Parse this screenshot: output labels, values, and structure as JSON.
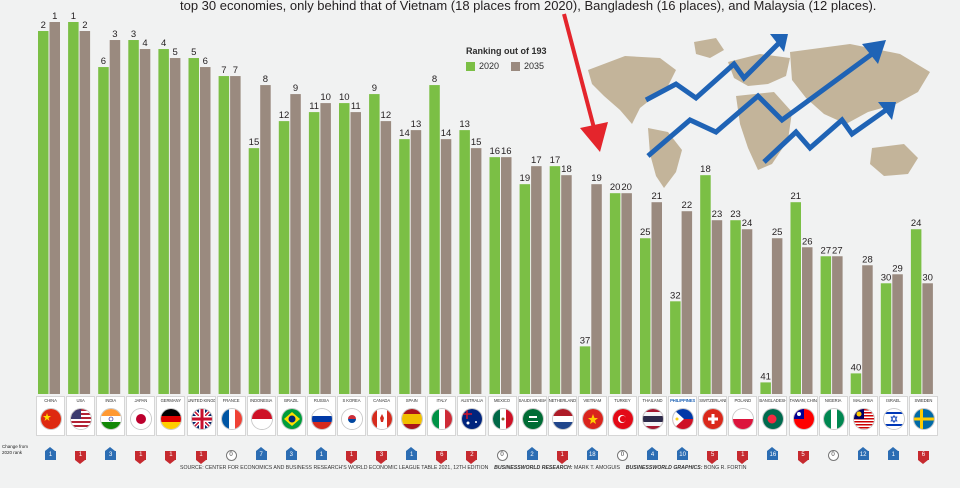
{
  "lead_text": "top 30 economies, only behind that of Vietnam (18 places from 2020), Bangladesh (16 places), and Malaysia (12 places).",
  "legend": {
    "title": "Ranking out of 193",
    "label_2020": "2020",
    "label_2035": "2035"
  },
  "change_label": "Change from 2020 rank",
  "footer": {
    "source": "SOURCE: CENTER FOR ECONOMICS AND BUSINESS RESEARCH'S WORLD ECONOMIC LEAGUE TABLE 2021, 12TH EDITION",
    "research_label": "BUSINESSWORLD RESEARCH:",
    "research_name": "MARK T. AMOGUIS",
    "graphics_label": "BUSINESSWORLD GRAPHICS:",
    "graphics_name": "BONG R. FORTIN"
  },
  "colors": {
    "bar_2020": "#7bbf45",
    "bar_2035": "#9a8a7f",
    "arrow_red": "#e4252c",
    "trend_blue": "#1f63b5",
    "map_tan": "#c3b49a"
  },
  "chart_data": {
    "type": "bar",
    "categories": [
      "CHINA",
      "USA",
      "INDIA",
      "JAPAN",
      "GERMANY",
      "UNITED KINGDOM",
      "FRANCE",
      "INDONESIA",
      "BRAZIL",
      "RUSSIA",
      "S KOREA",
      "CANADA",
      "SPAIN",
      "ITALY",
      "AUSTRALIA",
      "MEXICO",
      "SAUDI ARABIA",
      "NETHERLANDS",
      "VIETNAM",
      "TURKEY",
      "THAILAND",
      "PHILIPPINES",
      "SWITZERLAND",
      "POLAND",
      "BANGLADESH",
      "TAIWAN, CHINA",
      "NIGERIA",
      "MALAYSIA",
      "ISRAEL",
      "SWEDEN"
    ],
    "series": [
      {
        "name": "2020",
        "values": [
          2,
          1,
          6,
          3,
          4,
          5,
          7,
          15,
          12,
          11,
          10,
          9,
          14,
          8,
          13,
          16,
          19,
          17,
          37,
          20,
          25,
          32,
          18,
          23,
          41,
          21,
          27,
          40,
          30,
          24
        ]
      },
      {
        "name": "2035",
        "values": [
          1,
          2,
          3,
          4,
          5,
          6,
          7,
          8,
          9,
          10,
          11,
          12,
          13,
          14,
          15,
          16,
          17,
          18,
          19,
          20,
          21,
          22,
          23,
          24,
          25,
          26,
          27,
          28,
          29,
          30
        ]
      }
    ],
    "change": [
      1,
      1,
      3,
      1,
      1,
      1,
      0,
      7,
      3,
      1,
      1,
      3,
      1,
      6,
      2,
      0,
      2,
      1,
      18,
      0,
      4,
      10,
      5,
      1,
      16,
      5,
      0,
      12,
      1,
      6
    ],
    "change_dir": [
      "up",
      "down",
      "up",
      "down",
      "down",
      "down",
      "zero",
      "up",
      "up",
      "up",
      "down",
      "down",
      "up",
      "down",
      "down",
      "zero",
      "up",
      "down",
      "up",
      "zero",
      "up",
      "up",
      "down",
      "down",
      "up",
      "down",
      "zero",
      "up",
      "up",
      "down"
    ],
    "highlight": "PHILIPPINES",
    "ylabel": "",
    "xlabel": "",
    "ylim": [
      0,
      42
    ],
    "flags": [
      "cn",
      "us",
      "in",
      "jp",
      "de",
      "gb",
      "fr",
      "id",
      "br",
      "ru",
      "kr",
      "ca",
      "es",
      "it",
      "au",
      "mx",
      "sa",
      "nl",
      "vn",
      "tr",
      "th",
      "ph",
      "ch",
      "pl",
      "bd",
      "tw",
      "ng",
      "my",
      "il",
      "se"
    ]
  }
}
